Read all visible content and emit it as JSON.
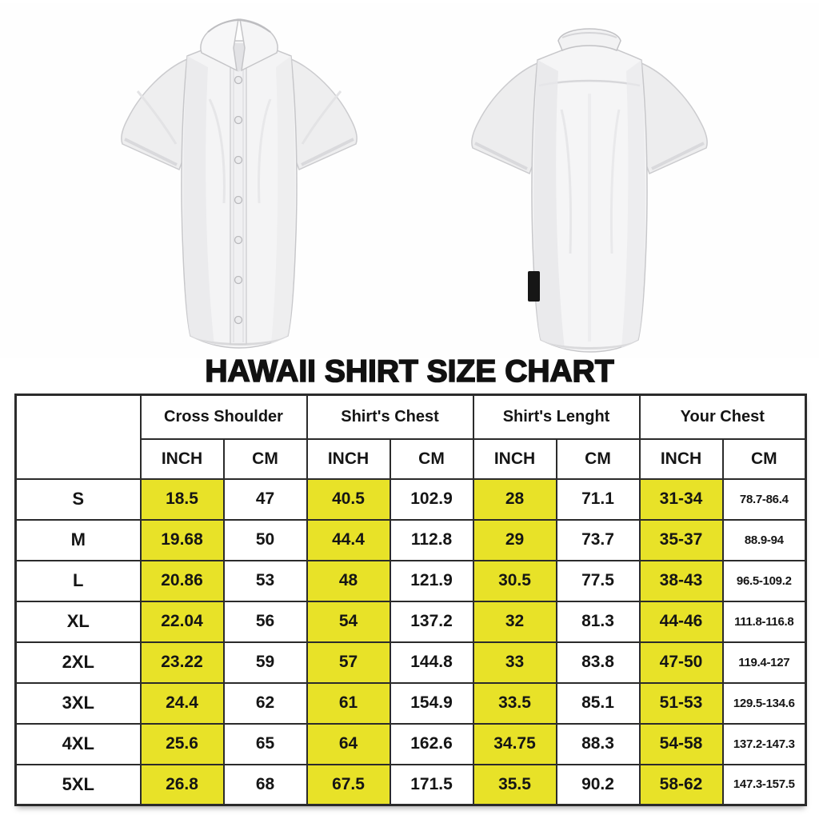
{
  "title": "HAWAII SHIRT SIZE CHART",
  "shirts": {
    "front_label": "white short-sleeve shirt, front view",
    "back_label": "white short-sleeve shirt, back view"
  },
  "colors": {
    "highlight_yellow": "#e8e228",
    "table_border": "#2b2b2b",
    "text": "#151515"
  },
  "table": {
    "groups": [
      {
        "label": "Cross Shoulder"
      },
      {
        "label": "Shirt's Chest"
      },
      {
        "label": "Shirt's Lenght"
      },
      {
        "label": "Your Chest"
      }
    ],
    "unit_row": [
      "INCH",
      "CM",
      "INCH",
      "CM",
      "INCH",
      "CM",
      "INCH",
      "CM"
    ],
    "rows": [
      {
        "size": "S",
        "values": [
          "18.5",
          "47",
          "40.5",
          "102.9",
          "28",
          "71.1",
          "31-34",
          "78.7-86.4"
        ]
      },
      {
        "size": "M",
        "values": [
          "19.68",
          "50",
          "44.4",
          "112.8",
          "29",
          "73.7",
          "35-37",
          "88.9-94"
        ]
      },
      {
        "size": "L",
        "values": [
          "20.86",
          "53",
          "48",
          "121.9",
          "30.5",
          "77.5",
          "38-43",
          "96.5-109.2"
        ]
      },
      {
        "size": "XL",
        "values": [
          "22.04",
          "56",
          "54",
          "137.2",
          "32",
          "81.3",
          "44-46",
          "111.8-116.8"
        ]
      },
      {
        "size": "2XL",
        "values": [
          "23.22",
          "59",
          "57",
          "144.8",
          "33",
          "83.8",
          "47-50",
          "119.4-127"
        ]
      },
      {
        "size": "3XL",
        "values": [
          "24.4",
          "62",
          "61",
          "154.9",
          "33.5",
          "85.1",
          "51-53",
          "129.5-134.6"
        ]
      },
      {
        "size": "4XL",
        "values": [
          "25.6",
          "65",
          "64",
          "162.6",
          "34.75",
          "88.3",
          "54-58",
          "137.2-147.3"
        ]
      },
      {
        "size": "5XL",
        "values": [
          "26.8",
          "68",
          "67.5",
          "171.5",
          "35.5",
          "90.2",
          "58-62",
          "147.3-157.5"
        ]
      }
    ]
  },
  "chart_data": {
    "type": "table",
    "title": "HAWAII SHIRT SIZE CHART",
    "column_groups": [
      "Cross Shoulder",
      "Shirt's Chest",
      "Shirt's Lenght",
      "Your Chest"
    ],
    "units_per_group": [
      "INCH",
      "CM"
    ],
    "sizes": [
      "S",
      "M",
      "L",
      "XL",
      "2XL",
      "3XL",
      "4XL",
      "5XL"
    ],
    "cross_shoulder_inch": [
      18.5,
      19.68,
      20.86,
      22.04,
      23.22,
      24.4,
      25.6,
      26.8
    ],
    "cross_shoulder_cm": [
      47,
      50,
      53,
      56,
      59,
      62,
      65,
      68
    ],
    "shirts_chest_inch": [
      40.5,
      44.4,
      48,
      54,
      57,
      61,
      64,
      67.5
    ],
    "shirts_chest_cm": [
      102.9,
      112.8,
      121.9,
      137.2,
      144.8,
      154.9,
      162.6,
      171.5
    ],
    "shirts_lenght_inch": [
      28,
      29,
      30.5,
      32,
      33,
      33.5,
      34.75,
      35.5
    ],
    "shirts_lenght_cm": [
      71.1,
      73.7,
      77.5,
      81.3,
      83.8,
      85.1,
      88.3,
      90.2
    ],
    "your_chest_inch": [
      "31-34",
      "35-37",
      "38-43",
      "44-46",
      "47-50",
      "51-53",
      "54-58",
      "58-62"
    ],
    "your_chest_cm": [
      "78.7-86.4",
      "88.9-94",
      "96.5-109.2",
      "111.8-116.8",
      "119.4-127",
      "129.5-134.6",
      "137.2-147.3",
      "147.3-157.5"
    ],
    "layout_hints": {
      "inch_columns_highlighted": true,
      "highlight_color": "#e8e228",
      "grid": true
    }
  }
}
